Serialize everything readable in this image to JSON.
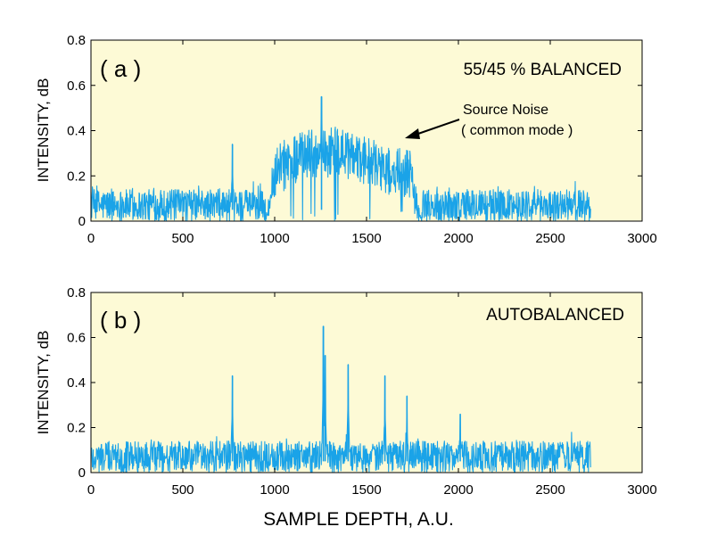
{
  "chart_data": [
    {
      "type": "line",
      "panel_label": "( a )",
      "annotation_title": "55/45 % BALANCED",
      "callout_lines": [
        "Source Noise",
        "( common mode )"
      ],
      "ylabel": "INTENSITY, dB",
      "xlim": [
        0,
        3000
      ],
      "ylim": [
        0,
        0.8
      ],
      "x_ticks": [
        "0",
        "500",
        "1000",
        "1500",
        "2000",
        "2500",
        "3000"
      ],
      "y_ticks": [
        "0",
        "0.2",
        "0.4",
        "0.6",
        "0.8"
      ],
      "plot_background": "#fdfad6",
      "line_color": "#1aa3e8",
      "data_x_range": [
        0,
        2720
      ],
      "baseline_level": 0.07,
      "baseline_peak": 0.18,
      "source_noise_band": {
        "x_start": 950,
        "x_end": 1800,
        "peak_level": 0.45
      },
      "spikes": [
        {
          "x": 770,
          "y": 0.34
        },
        {
          "x": 1255,
          "y": 0.55
        }
      ]
    },
    {
      "type": "line",
      "panel_label": "( b )",
      "annotation_title": "AUTOBALANCED",
      "ylabel": "INTENSITY, dB",
      "xlim": [
        0,
        3000
      ],
      "ylim": [
        0,
        0.8
      ],
      "x_ticks": [
        "0",
        "500",
        "1000",
        "1500",
        "2000",
        "2500",
        "3000"
      ],
      "y_ticks": [
        "0",
        "0.2",
        "0.4",
        "0.6",
        "0.8"
      ],
      "plot_background": "#fdfad6",
      "line_color": "#1aa3e8",
      "data_x_range": [
        0,
        2720
      ],
      "baseline_level": 0.07,
      "baseline_peak": 0.18,
      "spikes": [
        {
          "x": 770,
          "y": 0.43
        },
        {
          "x": 1265,
          "y": 0.65
        },
        {
          "x": 1275,
          "y": 0.52
        },
        {
          "x": 1400,
          "y": 0.48
        },
        {
          "x": 1600,
          "y": 0.43
        },
        {
          "x": 1720,
          "y": 0.34
        },
        {
          "x": 2010,
          "y": 0.26
        }
      ]
    }
  ],
  "xlabel": "SAMPLE DEPTH, A.U."
}
